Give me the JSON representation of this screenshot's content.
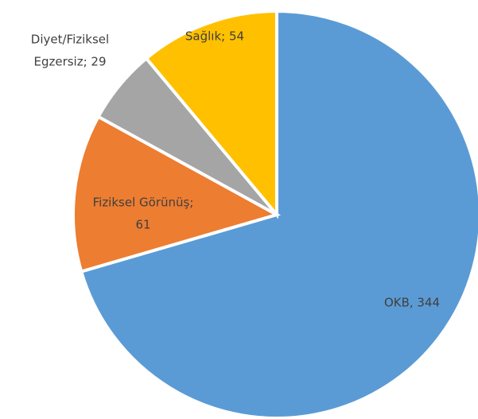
{
  "chart_data": {
    "type": "pie",
    "values": [
      344,
      61,
      29,
      54
    ],
    "value_labels": [
      [
        "OKB, 344"
      ],
      [
        "Fiziksel Görünüş;",
        "61"
      ],
      [
        "Diyet/Fiziksel",
        "Egzersiz; 29"
      ],
      [
        "Sağlık; 54"
      ]
    ],
    "colors": [
      "#5b9bd5",
      "#ed7d31",
      "#a5a5a5",
      "#ffc000"
    ]
  }
}
